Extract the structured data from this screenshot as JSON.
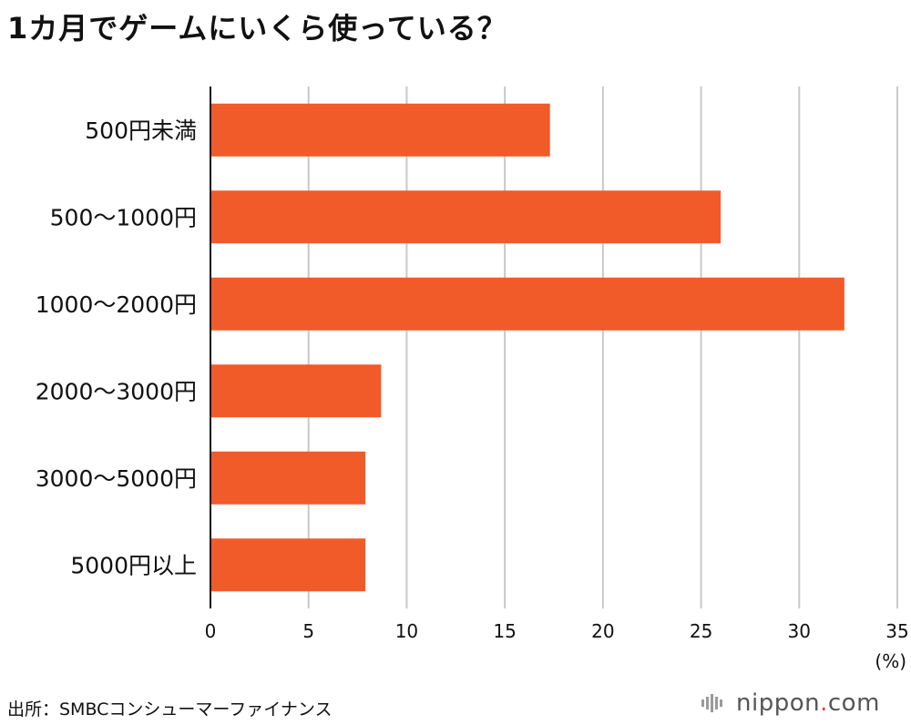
{
  "title": "1カ月でゲームにいくら使っている？",
  "source": "出所：SMBCコンシューマーファイナンス",
  "brand": {
    "name": "nippon",
    "dot": ".",
    "tld": "com",
    "dot_color": "#e8413a",
    "text_color": "#555555"
  },
  "colors": {
    "bar": "#f15a29",
    "grid": "#c8c8c8",
    "axis": "#111111"
  },
  "chart_data": {
    "type": "bar",
    "orientation": "horizontal",
    "categories": [
      "500円未満",
      "500〜1000円",
      "1000〜2000円",
      "2000〜3000円",
      "3000〜5000円",
      "5000円以上"
    ],
    "values": [
      17.3,
      26.0,
      32.3,
      8.7,
      7.9,
      7.9
    ],
    "xlim": [
      0,
      35
    ],
    "xticks": [
      0,
      5,
      10,
      15,
      20,
      25,
      30,
      35
    ],
    "xunit": "(%)",
    "grid": true,
    "legend": "none"
  }
}
